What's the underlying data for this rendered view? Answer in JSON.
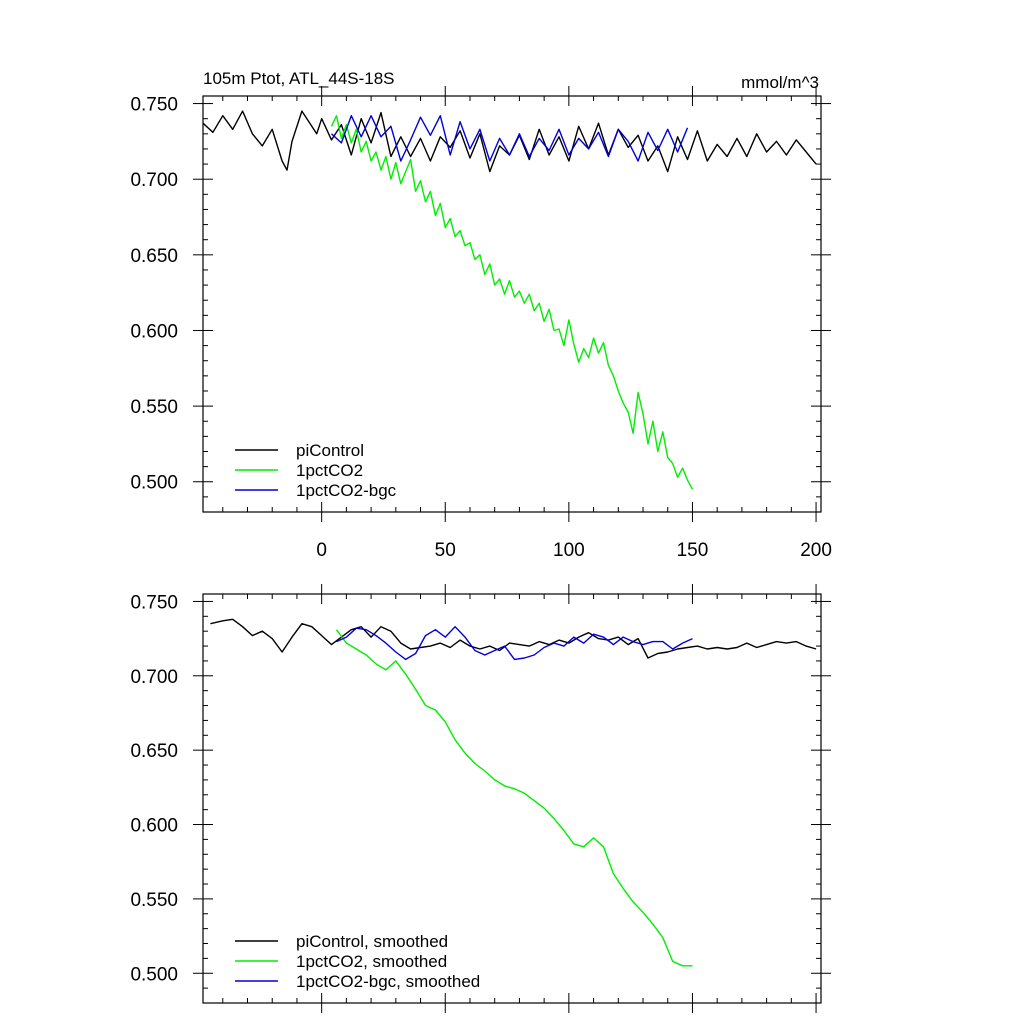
{
  "colors": {
    "piControl": "#000000",
    "pct1": "#00ee00",
    "bgc": "#0000dd"
  },
  "chart_data": [
    {
      "type": "line",
      "title": "105m Ptot, ATL_44S-18S",
      "units": "mmol/m^3",
      "xlim": [
        -48,
        202
      ],
      "ylim": [
        0.48,
        0.755
      ],
      "xticks": [
        0,
        50,
        100,
        150,
        200
      ],
      "xtick_labels": [
        "0",
        "50",
        "100",
        "150",
        "200"
      ],
      "yticks": [
        0.5,
        0.55,
        0.6,
        0.65,
        0.7,
        0.75
      ],
      "ytick_labels": [
        "0.500",
        "0.550",
        "0.600",
        "0.650",
        "0.700",
        "0.750"
      ],
      "legend_position": "bottom-left",
      "series": [
        {
          "name": "piControl",
          "color_key": "piControl",
          "x": [
            -48,
            -44,
            -40,
            -36,
            -32,
            -28,
            -24,
            -20,
            -16,
            -14,
            -12,
            -8,
            -4,
            -2,
            0,
            4,
            8,
            12,
            16,
            20,
            24,
            28,
            32,
            36,
            40,
            44,
            48,
            52,
            56,
            60,
            64,
            68,
            72,
            76,
            80,
            84,
            88,
            92,
            96,
            100,
            104,
            108,
            112,
            116,
            120,
            124,
            128,
            132,
            136,
            140,
            144,
            148,
            152,
            156,
            160,
            164,
            168,
            172,
            176,
            180,
            184,
            188,
            192,
            196,
            200
          ],
          "y": [
            0.737,
            0.731,
            0.742,
            0.733,
            0.745,
            0.73,
            0.722,
            0.733,
            0.712,
            0.706,
            0.725,
            0.745,
            0.735,
            0.73,
            0.74,
            0.726,
            0.736,
            0.716,
            0.74,
            0.724,
            0.744,
            0.715,
            0.728,
            0.715,
            0.727,
            0.712,
            0.728,
            0.721,
            0.732,
            0.714,
            0.73,
            0.705,
            0.722,
            0.716,
            0.729,
            0.713,
            0.733,
            0.716,
            0.728,
            0.712,
            0.735,
            0.72,
            0.737,
            0.716,
            0.733,
            0.721,
            0.729,
            0.712,
            0.722,
            0.705,
            0.728,
            0.713,
            0.732,
            0.712,
            0.723,
            0.715,
            0.727,
            0.715,
            0.73,
            0.718,
            0.725,
            0.716,
            0.726,
            0.718,
            0.71
          ]
        },
        {
          "name": "1pctCO2",
          "color_key": "pct1",
          "x": [
            4,
            6,
            8,
            10,
            12,
            14,
            16,
            18,
            20,
            22,
            24,
            26,
            28,
            30,
            32,
            34,
            36,
            38,
            40,
            42,
            44,
            46,
            48,
            50,
            52,
            54,
            56,
            58,
            60,
            62,
            64,
            66,
            68,
            70,
            72,
            74,
            76,
            78,
            80,
            82,
            84,
            86,
            88,
            90,
            92,
            94,
            96,
            98,
            100,
            102,
            104,
            106,
            108,
            110,
            112,
            114,
            116,
            118,
            120,
            122,
            124,
            126,
            128,
            130,
            132,
            134,
            136,
            138,
            140,
            142,
            144,
            146,
            148,
            150
          ],
          "y": [
            0.735,
            0.742,
            0.727,
            0.736,
            0.724,
            0.733,
            0.718,
            0.725,
            0.712,
            0.718,
            0.706,
            0.715,
            0.7,
            0.711,
            0.697,
            0.705,
            0.713,
            0.692,
            0.699,
            0.685,
            0.692,
            0.676,
            0.684,
            0.668,
            0.674,
            0.662,
            0.666,
            0.656,
            0.658,
            0.647,
            0.65,
            0.637,
            0.644,
            0.63,
            0.634,
            0.624,
            0.633,
            0.622,
            0.626,
            0.618,
            0.624,
            0.613,
            0.618,
            0.606,
            0.614,
            0.6,
            0.601,
            0.59,
            0.607,
            0.591,
            0.579,
            0.588,
            0.582,
            0.595,
            0.585,
            0.592,
            0.577,
            0.57,
            0.56,
            0.552,
            0.546,
            0.532,
            0.559,
            0.545,
            0.525,
            0.54,
            0.52,
            0.533,
            0.516,
            0.512,
            0.503,
            0.509,
            0.501,
            0.495
          ]
        },
        {
          "name": "1pctCO2-bgc",
          "color_key": "bgc",
          "x": [
            4,
            8,
            12,
            16,
            20,
            24,
            28,
            32,
            36,
            40,
            44,
            48,
            52,
            56,
            60,
            64,
            68,
            72,
            76,
            80,
            84,
            88,
            92,
            96,
            100,
            104,
            108,
            112,
            116,
            120,
            124,
            128,
            132,
            136,
            140,
            144,
            148
          ],
          "y": [
            0.73,
            0.724,
            0.742,
            0.728,
            0.742,
            0.728,
            0.735,
            0.712,
            0.726,
            0.741,
            0.729,
            0.742,
            0.716,
            0.738,
            0.72,
            0.733,
            0.712,
            0.727,
            0.716,
            0.73,
            0.715,
            0.727,
            0.719,
            0.733,
            0.716,
            0.727,
            0.72,
            0.731,
            0.715,
            0.733,
            0.725,
            0.712,
            0.731,
            0.719,
            0.733,
            0.718,
            0.734
          ]
        }
      ]
    },
    {
      "type": "line",
      "title": "",
      "units": "",
      "xlim": [
        -48,
        202
      ],
      "ylim": [
        0.48,
        0.755
      ],
      "xticks": [
        0,
        50,
        100,
        150,
        200
      ],
      "xtick_labels": [],
      "yticks": [
        0.5,
        0.55,
        0.6,
        0.65,
        0.7,
        0.75
      ],
      "ytick_labels": [
        "0.500",
        "0.550",
        "0.600",
        "0.650",
        "0.700",
        "0.750"
      ],
      "legend_position": "bottom-left",
      "series": [
        {
          "name": "piControl, smoothed",
          "color_key": "piControl",
          "x": [
            -45,
            -40,
            -36,
            -32,
            -28,
            -24,
            -20,
            -16,
            -12,
            -8,
            -4,
            0,
            4,
            8,
            12,
            16,
            20,
            24,
            28,
            32,
            36,
            40,
            44,
            48,
            52,
            56,
            60,
            64,
            68,
            72,
            76,
            80,
            84,
            88,
            92,
            96,
            100,
            104,
            108,
            112,
            116,
            120,
            124,
            128,
            132,
            136,
            140,
            144,
            148,
            152,
            156,
            160,
            164,
            168,
            172,
            176,
            180,
            184,
            188,
            192,
            196,
            200
          ],
          "y": [
            0.735,
            0.737,
            0.738,
            0.733,
            0.727,
            0.73,
            0.725,
            0.716,
            0.726,
            0.735,
            0.733,
            0.727,
            0.721,
            0.726,
            0.731,
            0.733,
            0.726,
            0.733,
            0.73,
            0.722,
            0.718,
            0.719,
            0.72,
            0.722,
            0.719,
            0.724,
            0.72,
            0.718,
            0.72,
            0.717,
            0.722,
            0.721,
            0.72,
            0.723,
            0.721,
            0.724,
            0.722,
            0.726,
            0.729,
            0.725,
            0.724,
            0.726,
            0.721,
            0.725,
            0.712,
            0.715,
            0.716,
            0.718,
            0.719,
            0.72,
            0.718,
            0.719,
            0.718,
            0.719,
            0.722,
            0.719,
            0.721,
            0.723,
            0.722,
            0.723,
            0.72,
            0.718
          ]
        },
        {
          "name": "1pctCO2, smoothed",
          "color_key": "pct1",
          "x": [
            6,
            10,
            14,
            18,
            22,
            26,
            30,
            34,
            38,
            42,
            46,
            50,
            54,
            58,
            62,
            66,
            70,
            74,
            78,
            82,
            86,
            90,
            94,
            98,
            102,
            106,
            110,
            114,
            118,
            122,
            126,
            130,
            134,
            138,
            142,
            146,
            150
          ],
          "y": [
            0.731,
            0.722,
            0.718,
            0.714,
            0.708,
            0.704,
            0.71,
            0.701,
            0.691,
            0.68,
            0.677,
            0.669,
            0.657,
            0.648,
            0.641,
            0.636,
            0.63,
            0.626,
            0.624,
            0.621,
            0.616,
            0.611,
            0.604,
            0.596,
            0.587,
            0.585,
            0.591,
            0.585,
            0.567,
            0.557,
            0.548,
            0.541,
            0.533,
            0.524,
            0.508,
            0.505,
            0.505
          ]
        },
        {
          "name": "1pctCO2-bgc, smoothed",
          "color_key": "bgc",
          "x": [
            6,
            10,
            14,
            18,
            22,
            26,
            30,
            34,
            38,
            42,
            46,
            50,
            54,
            58,
            62,
            66,
            70,
            74,
            78,
            82,
            86,
            90,
            94,
            98,
            102,
            106,
            110,
            114,
            118,
            122,
            126,
            130,
            134,
            138,
            142,
            146,
            150
          ],
          "y": [
            0.723,
            0.726,
            0.732,
            0.731,
            0.727,
            0.722,
            0.716,
            0.711,
            0.715,
            0.727,
            0.731,
            0.726,
            0.733,
            0.726,
            0.717,
            0.714,
            0.717,
            0.72,
            0.711,
            0.712,
            0.714,
            0.719,
            0.722,
            0.72,
            0.726,
            0.722,
            0.728,
            0.726,
            0.721,
            0.726,
            0.723,
            0.721,
            0.723,
            0.723,
            0.718,
            0.722,
            0.725
          ]
        }
      ]
    }
  ]
}
